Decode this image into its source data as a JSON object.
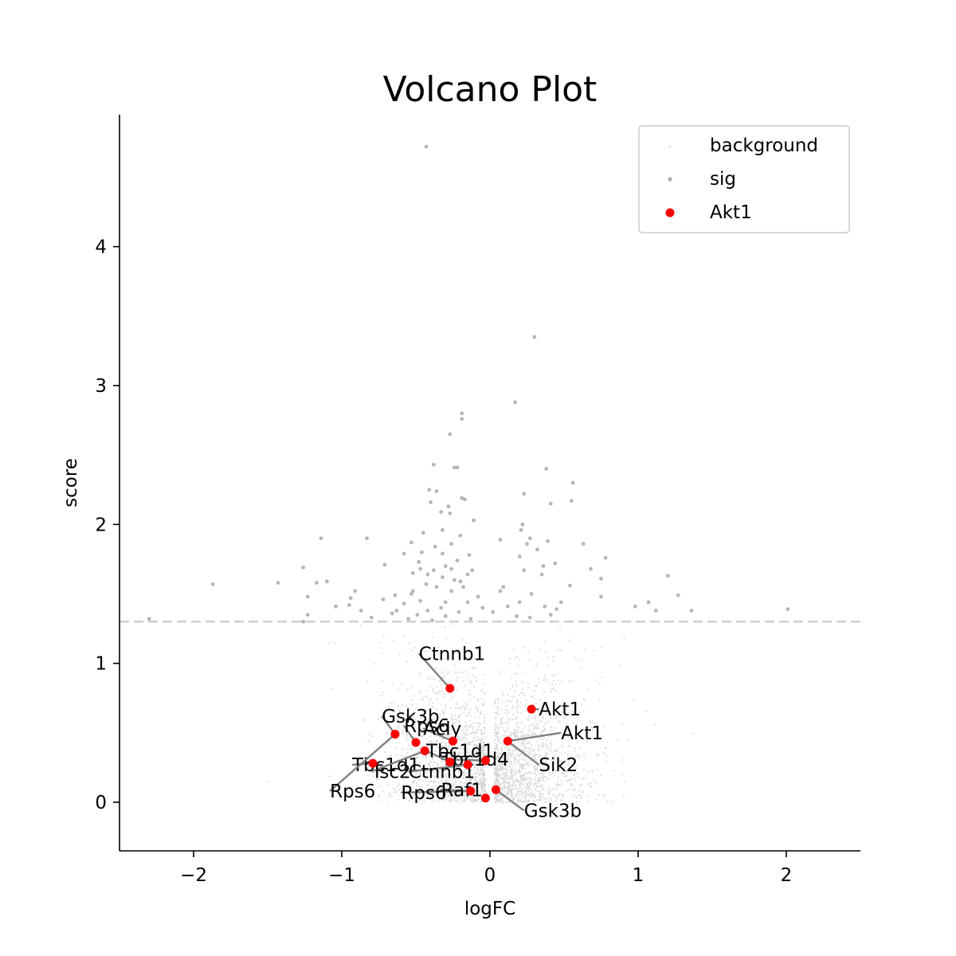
{
  "chart_data": {
    "type": "scatter",
    "title": "Volcano Plot",
    "xlabel": "logFC",
    "ylabel": "score",
    "xlim": [
      -2.5,
      2.5
    ],
    "ylim": [
      -0.35,
      4.95
    ],
    "xticks": [
      -2,
      -1,
      0,
      1,
      2
    ],
    "yticks": [
      0,
      1,
      2,
      3,
      4
    ],
    "xtick_labels": [
      "−2",
      "−1",
      "0",
      "1",
      "2"
    ],
    "ytick_labels": [
      "0",
      "1",
      "2",
      "3",
      "4"
    ],
    "threshold": 1.3,
    "grid": false,
    "legend_position": "top-right",
    "legend": [
      {
        "label": "background",
        "color": "#d3d3d3"
      },
      {
        "label": "sig",
        "color": "#a9a9a9"
      },
      {
        "label": "Akt1",
        "color": "#ff0000"
      }
    ],
    "series": [
      {
        "name": "sig",
        "color": "#a9a9a9",
        "points": [
          [
            -0.43,
            4.72
          ],
          [
            0.3,
            3.35
          ],
          [
            0.17,
            2.88
          ],
          [
            -0.19,
            2.8
          ],
          [
            -0.19,
            2.76
          ],
          [
            -0.27,
            2.65
          ],
          [
            -0.38,
            2.43
          ],
          [
            -0.22,
            2.41
          ],
          [
            -0.24,
            2.41
          ],
          [
            0.38,
            2.4
          ],
          [
            -0.41,
            2.25
          ],
          [
            -0.36,
            2.24
          ],
          [
            0.56,
            2.3
          ],
          [
            0.23,
            2.22
          ],
          [
            -0.4,
            2.16
          ],
          [
            -0.19,
            2.19
          ],
          [
            -0.17,
            2.18
          ],
          [
            0.55,
            2.17
          ],
          [
            0.41,
            2.15
          ],
          [
            -0.28,
            2.13
          ],
          [
            -0.33,
            2.09
          ],
          [
            -0.27,
            2.08
          ],
          [
            -0.11,
            2.03
          ],
          [
            0.22,
            2.0
          ],
          [
            -0.32,
            1.96
          ],
          [
            -0.45,
            1.94
          ],
          [
            -0.2,
            1.92
          ],
          [
            0.21,
            1.96
          ],
          [
            0.27,
            1.9
          ],
          [
            -1.14,
            1.9
          ],
          [
            -0.83,
            1.9
          ],
          [
            0.07,
            1.89
          ],
          [
            0.39,
            1.88
          ],
          [
            0.25,
            1.86
          ],
          [
            -0.53,
            1.87
          ],
          [
            -0.26,
            1.86
          ],
          [
            0.63,
            1.86
          ],
          [
            -0.37,
            1.84
          ],
          [
            -0.46,
            1.8
          ],
          [
            -0.32,
            1.79
          ],
          [
            -0.58,
            1.79
          ],
          [
            -0.14,
            1.78
          ],
          [
            0.32,
            1.82
          ],
          [
            0.2,
            1.77
          ],
          [
            0.78,
            1.76
          ],
          [
            -0.48,
            1.73
          ],
          [
            -0.22,
            1.74
          ],
          [
            0.44,
            1.72
          ],
          [
            -0.71,
            1.71
          ],
          [
            0.36,
            1.7
          ],
          [
            -0.47,
            1.68
          ],
          [
            -0.3,
            1.7
          ],
          [
            -0.26,
            1.68
          ],
          [
            -0.38,
            1.67
          ],
          [
            -0.12,
            1.67
          ],
          [
            0.23,
            1.67
          ],
          [
            -1.26,
            1.69
          ],
          [
            0.68,
            1.68
          ],
          [
            -0.52,
            1.65
          ],
          [
            -0.42,
            1.64
          ],
          [
            -0.15,
            1.64
          ],
          [
            0.35,
            1.64
          ],
          [
            1.2,
            1.63
          ],
          [
            -0.32,
            1.62
          ],
          [
            -0.24,
            1.6
          ],
          [
            -0.2,
            1.59
          ],
          [
            -0.43,
            1.57
          ],
          [
            0.75,
            1.61
          ],
          [
            -1.87,
            1.57
          ],
          [
            -1.43,
            1.58
          ],
          [
            -1.17,
            1.58
          ],
          [
            -1.1,
            1.59
          ],
          [
            -0.36,
            1.55
          ],
          [
            -0.18,
            1.55
          ],
          [
            0.09,
            1.55
          ],
          [
            0.54,
            1.56
          ],
          [
            -0.26,
            1.52
          ],
          [
            0.07,
            1.52
          ],
          [
            -0.52,
            1.52
          ],
          [
            -0.91,
            1.52
          ],
          [
            -0.53,
            1.5
          ],
          [
            0.28,
            1.5
          ],
          [
            -0.64,
            1.49
          ],
          [
            -0.08,
            1.48
          ],
          [
            -1.23,
            1.48
          ],
          [
            -0.94,
            1.47
          ],
          [
            0.75,
            1.48
          ],
          [
            1.27,
            1.49
          ],
          [
            -0.72,
            1.46
          ],
          [
            -0.47,
            1.45
          ],
          [
            -0.3,
            1.44
          ],
          [
            -0.15,
            1.44
          ],
          [
            0.2,
            1.44
          ],
          [
            0.48,
            1.44
          ],
          [
            -0.58,
            1.43
          ],
          [
            -0.95,
            1.42
          ],
          [
            -1.04,
            1.41
          ],
          [
            1.07,
            1.44
          ],
          [
            0.98,
            1.41
          ],
          [
            -0.33,
            1.4
          ],
          [
            -0.05,
            1.4
          ],
          [
            0.12,
            1.41
          ],
          [
            0.37,
            1.41
          ],
          [
            -0.42,
            1.38
          ],
          [
            -0.63,
            1.38
          ],
          [
            -0.87,
            1.38
          ],
          [
            0.45,
            1.39
          ],
          [
            1.12,
            1.38
          ],
          [
            1.36,
            1.38
          ],
          [
            -0.21,
            1.37
          ],
          [
            0.02,
            1.37
          ],
          [
            -0.66,
            1.36
          ],
          [
            -0.49,
            1.35
          ],
          [
            0.41,
            1.35
          ],
          [
            -1.23,
            1.35
          ],
          [
            -0.3,
            1.34
          ],
          [
            0.18,
            1.34
          ],
          [
            -0.8,
            1.33
          ],
          [
            -2.3,
            1.32
          ],
          [
            -0.13,
            1.32
          ],
          [
            -0.55,
            1.32
          ],
          [
            0.27,
            1.33
          ],
          [
            -1.26,
            1.3
          ],
          [
            -0.39,
            1.31
          ],
          [
            2.01,
            1.39
          ]
        ]
      },
      {
        "name": "Akt1",
        "color": "#ff0000",
        "points": [
          [
            -0.27,
            0.82
          ],
          [
            0.28,
            0.67
          ],
          [
            -0.64,
            0.49
          ],
          [
            -0.25,
            0.44
          ],
          [
            0.12,
            0.44
          ],
          [
            -0.5,
            0.43
          ],
          [
            -0.44,
            0.37
          ],
          [
            -0.03,
            0.3
          ],
          [
            -0.27,
            0.29
          ],
          [
            -0.79,
            0.28
          ],
          [
            -0.15,
            0.27
          ],
          [
            0.04,
            0.09
          ],
          [
            -0.13,
            0.08
          ],
          [
            -0.03,
            0.03
          ]
        ]
      }
    ],
    "annotations": [
      {
        "text": "Ctnnb1",
        "x": -0.27,
        "y": 0.82,
        "lx": -0.48,
        "ly": 1.07
      },
      {
        "text": "Akt1",
        "x": 0.28,
        "y": 0.67,
        "lx": 0.33,
        "ly": 0.67
      },
      {
        "text": "Akt1",
        "x": 0.12,
        "y": 0.44,
        "lx": 0.48,
        "ly": 0.5
      },
      {
        "text": "Gsk3b",
        "x": -0.64,
        "y": 0.49,
        "lx": -0.73,
        "ly": 0.62
      },
      {
        "text": "Rps6",
        "x": -0.5,
        "y": 0.43,
        "lx": -0.58,
        "ly": 0.55
      },
      {
        "text": "Acly",
        "x": -0.25,
        "y": 0.44,
        "lx": -0.45,
        "ly": 0.53
      },
      {
        "text": "Tbc1d1",
        "x": -0.27,
        "y": 0.29,
        "lx": -0.43,
        "ly": 0.37
      },
      {
        "text": "Tbc1d4",
        "x": -0.03,
        "y": 0.3,
        "lx": -0.33,
        "ly": 0.31
      },
      {
        "text": "Sik2",
        "x": 0.12,
        "y": 0.44,
        "lx": 0.33,
        "ly": 0.27
      },
      {
        "text": "Tbc1d1",
        "x": -0.79,
        "y": 0.28,
        "lx": -0.93,
        "ly": 0.27
      },
      {
        "text": "Tsc2",
        "x": -0.44,
        "y": 0.37,
        "lx": -0.8,
        "ly": 0.22
      },
      {
        "text": "Ctnnb1",
        "x": -0.15,
        "y": 0.27,
        "lx": -0.55,
        "ly": 0.22
      },
      {
        "text": "Rps6",
        "x": -0.64,
        "y": 0.49,
        "lx": -1.08,
        "ly": 0.08
      },
      {
        "text": "Rps6",
        "x": -0.13,
        "y": 0.08,
        "lx": -0.6,
        "ly": 0.07
      },
      {
        "text": "Raf1",
        "x": -0.13,
        "y": 0.08,
        "lx": -0.33,
        "ly": 0.09
      },
      {
        "text": "Gsk3b",
        "x": 0.04,
        "y": 0.09,
        "lx": 0.23,
        "ly": -0.06
      }
    ]
  }
}
